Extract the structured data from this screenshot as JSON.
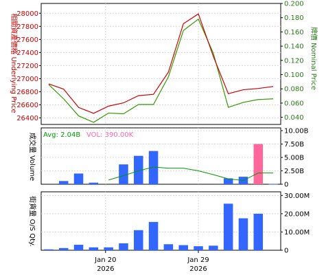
{
  "chart_data": [
    {
      "type": "line",
      "panel": "price",
      "left_axis_label": "相關資產價格 Underlying Price",
      "right_axis_label": "牌價 Nominal Price",
      "left_ticks": [
        "28000",
        "27800",
        "27600",
        "27400",
        "27200",
        "27000",
        "26800",
        "26600",
        "26400"
      ],
      "right_ticks": [
        "0.200",
        "0.180",
        "0.160",
        "0.140",
        "0.120",
        "0.100",
        "0.080",
        "0.060",
        "0.040"
      ],
      "left_ylim": [
        26300,
        28150
      ],
      "right_ylim": [
        0.03,
        0.2
      ],
      "categories_count": 16,
      "underlying": [
        26920,
        26840,
        26560,
        26470,
        26580,
        26630,
        26740,
        26760,
        27100,
        27840,
        27990,
        27340,
        26770,
        26830,
        26850,
        26880
      ],
      "nominal": [
        0.086,
        0.066,
        0.042,
        0.033,
        0.046,
        0.045,
        0.058,
        0.058,
        0.097,
        0.162,
        0.178,
        0.13,
        0.054,
        0.061,
        0.065,
        0.066
      ],
      "colors": {
        "underlying": "#cc0000",
        "nominal": "#339900"
      }
    },
    {
      "type": "bar",
      "panel": "volume",
      "axis_label": "成交量 Volume",
      "legend_avg": "Avg: 2.04B",
      "legend_vol": "VOL: 390.00K",
      "ticks": [
        "10.00B",
        "7.50B",
        "5.00B",
        "2.50B",
        "0"
      ],
      "ylim": [
        0,
        10
      ],
      "values": [
        0,
        0.6,
        2.0,
        0.3,
        0,
        3.7,
        5.3,
        6.2,
        0,
        0,
        0,
        0,
        1.1,
        1.4,
        7.5,
        0.05
      ],
      "moving_avg": [
        null,
        null,
        null,
        null,
        0.8,
        1.6,
        2.5,
        3.2,
        3.0,
        3.0,
        2.5,
        1.8,
        1.0,
        0.7,
        2.1,
        2.1
      ],
      "highlight_index": 14,
      "colors": {
        "bar": "#3366ff",
        "highlight": "#ff6699",
        "avg": "#009900",
        "avg_legend": "#009900",
        "vol_legend": "#ff66aa"
      }
    },
    {
      "type": "bar",
      "panel": "outstanding",
      "axis_label": "街貨量 O/S Qty.",
      "ticks": [
        "30.00M",
        "20.00M",
        "10.00M",
        "0"
      ],
      "ylim": [
        0,
        32
      ],
      "values": [
        0.5,
        1.2,
        3.0,
        1.6,
        1.6,
        3.8,
        11.0,
        15.5,
        3.3,
        2.8,
        2.2,
        2.5,
        25.5,
        17.5,
        20.0,
        0
      ],
      "colors": {
        "bar": "#3366ff"
      }
    }
  ],
  "x_labels": [
    {
      "index": 3.8,
      "line1": "Jan 20",
      "line2": "2026"
    },
    {
      "index": 10.0,
      "line1": "Jan 29",
      "line2": "2026"
    }
  ]
}
